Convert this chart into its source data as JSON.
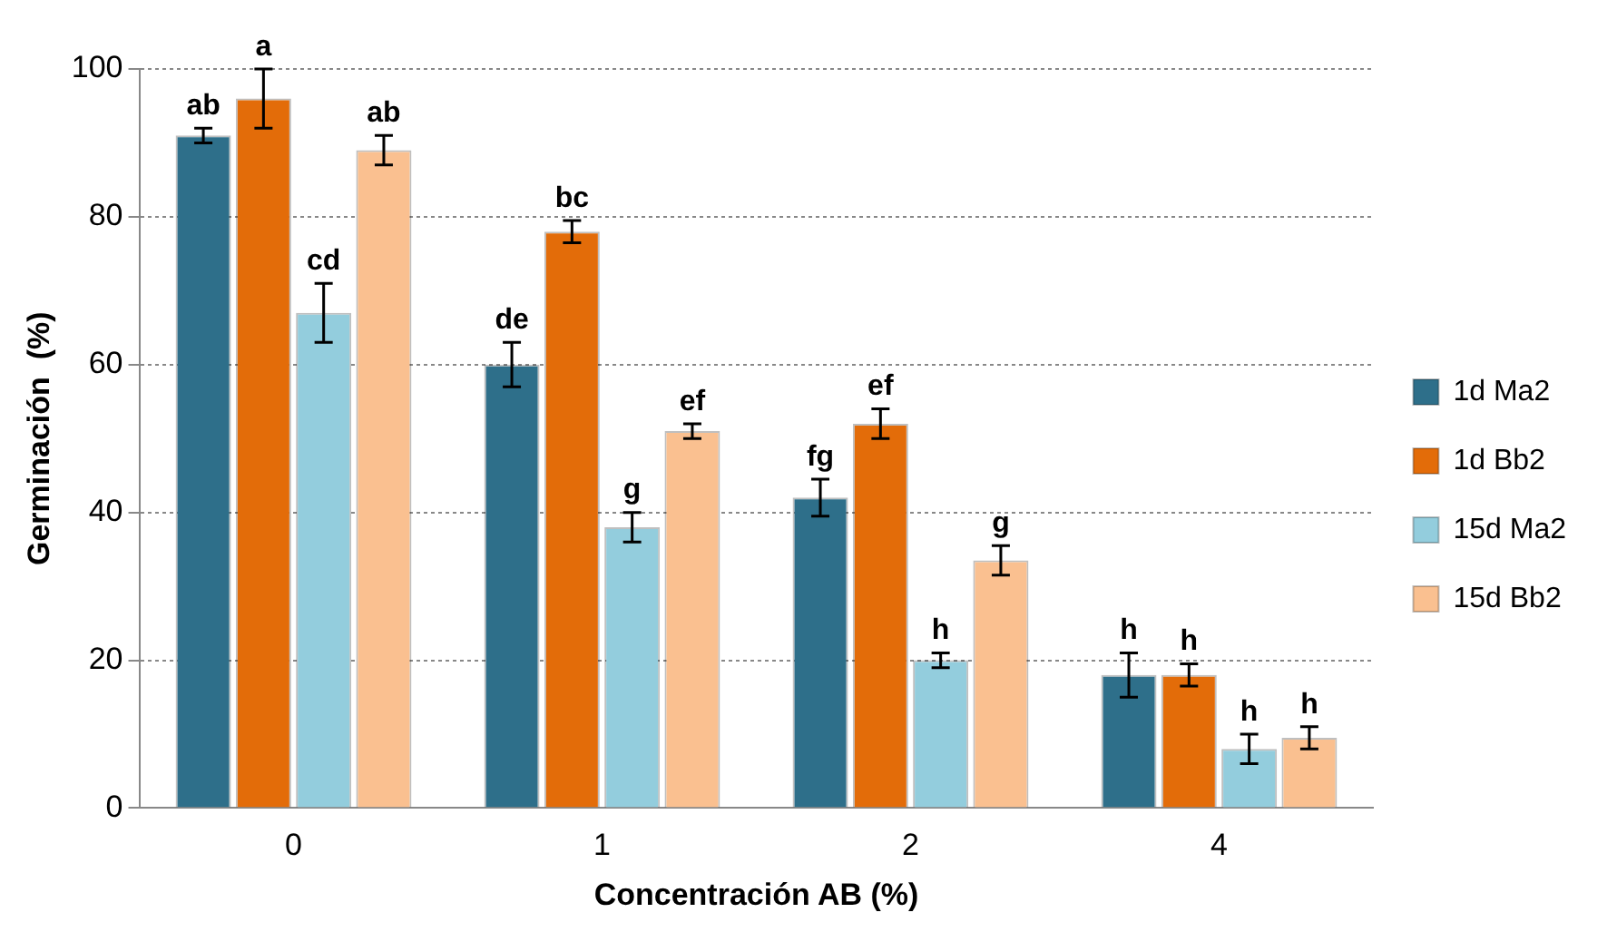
{
  "chart_data": {
    "type": "bar",
    "xlabel": "Concentración AB (%)",
    "ylabel": "Germinación  (%)",
    "categories": [
      "0",
      "1",
      "2",
      "4"
    ],
    "series": [
      {
        "name": "1d Ma2",
        "color": "#2e6f8a",
        "values": [
          91,
          60,
          42,
          18
        ],
        "errors": [
          1,
          3,
          2.5,
          3
        ],
        "value_labels": [
          "ab",
          "de",
          "fg",
          "h"
        ]
      },
      {
        "name": "1d Bb2",
        "color": "#e36c09",
        "values": [
          96,
          78,
          52,
          18
        ],
        "errors": [
          4,
          1.5,
          2,
          1.5
        ],
        "value_labels": [
          "a",
          "bc",
          "ef",
          "h"
        ]
      },
      {
        "name": "15d Ma2",
        "color": "#93cddd",
        "values": [
          67,
          38,
          20,
          8
        ],
        "errors": [
          4,
          2,
          1,
          2
        ],
        "value_labels": [
          "cd",
          "g",
          "h",
          "h"
        ]
      },
      {
        "name": "15d Bb2",
        "color": "#fac090",
        "values": [
          89,
          51,
          33.5,
          9.5
        ],
        "errors": [
          2,
          1,
          2,
          1.5
        ],
        "value_labels": [
          "ab",
          "ef",
          "g",
          "h"
        ]
      }
    ],
    "ylim": [
      0,
      100
    ],
    "yticks": [
      0,
      20,
      40,
      60,
      80,
      100
    ],
    "grid": "y",
    "legend": "right"
  }
}
